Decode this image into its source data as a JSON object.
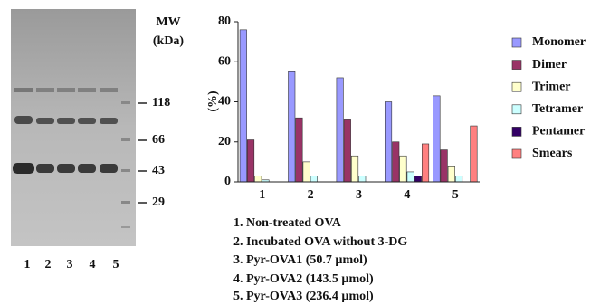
{
  "gel": {
    "title_lines": [
      "MW",
      "(kDa)"
    ],
    "markers": [
      "118",
      "66",
      "43",
      "29"
    ],
    "lanes": [
      "1",
      "2",
      "3",
      "4",
      "5"
    ]
  },
  "chart_data": {
    "type": "bar",
    "ylabel": "(%)",
    "categories": [
      "1",
      "2",
      "3",
      "4",
      "5"
    ],
    "series": [
      {
        "name": "Monomer",
        "color": "#9999ff",
        "values": [
          76,
          55,
          52,
          40,
          43
        ]
      },
      {
        "name": "Dimer",
        "color": "#993366",
        "values": [
          21,
          32,
          31,
          20,
          16
        ]
      },
      {
        "name": "Trimer",
        "color": "#ffffcc",
        "values": [
          3,
          10,
          13,
          13,
          8
        ]
      },
      {
        "name": "Tetramer",
        "color": "#ccffff",
        "values": [
          1,
          3,
          3,
          5,
          3
        ]
      },
      {
        "name": "Pentamer",
        "color": "#330066",
        "values": [
          0,
          0,
          0,
          3,
          0
        ]
      },
      {
        "name": "Smears",
        "color": "#ff8080",
        "values": [
          0,
          0,
          0,
          19,
          28
        ]
      }
    ],
    "ylim": [
      0,
      80
    ],
    "yticks": [
      0,
      20,
      40,
      60,
      80
    ],
    "legend": "right"
  },
  "sample_list": [
    "1. Non-treated OVA",
    "2. Incubated OVA without 3-DG",
    "3. Pyr-OVA1 (50.7 µmol)",
    "4. Pyr-OVA2 (143.5 µmol)",
    "5. Pyr-OVA3 (236.4 µmol)"
  ]
}
